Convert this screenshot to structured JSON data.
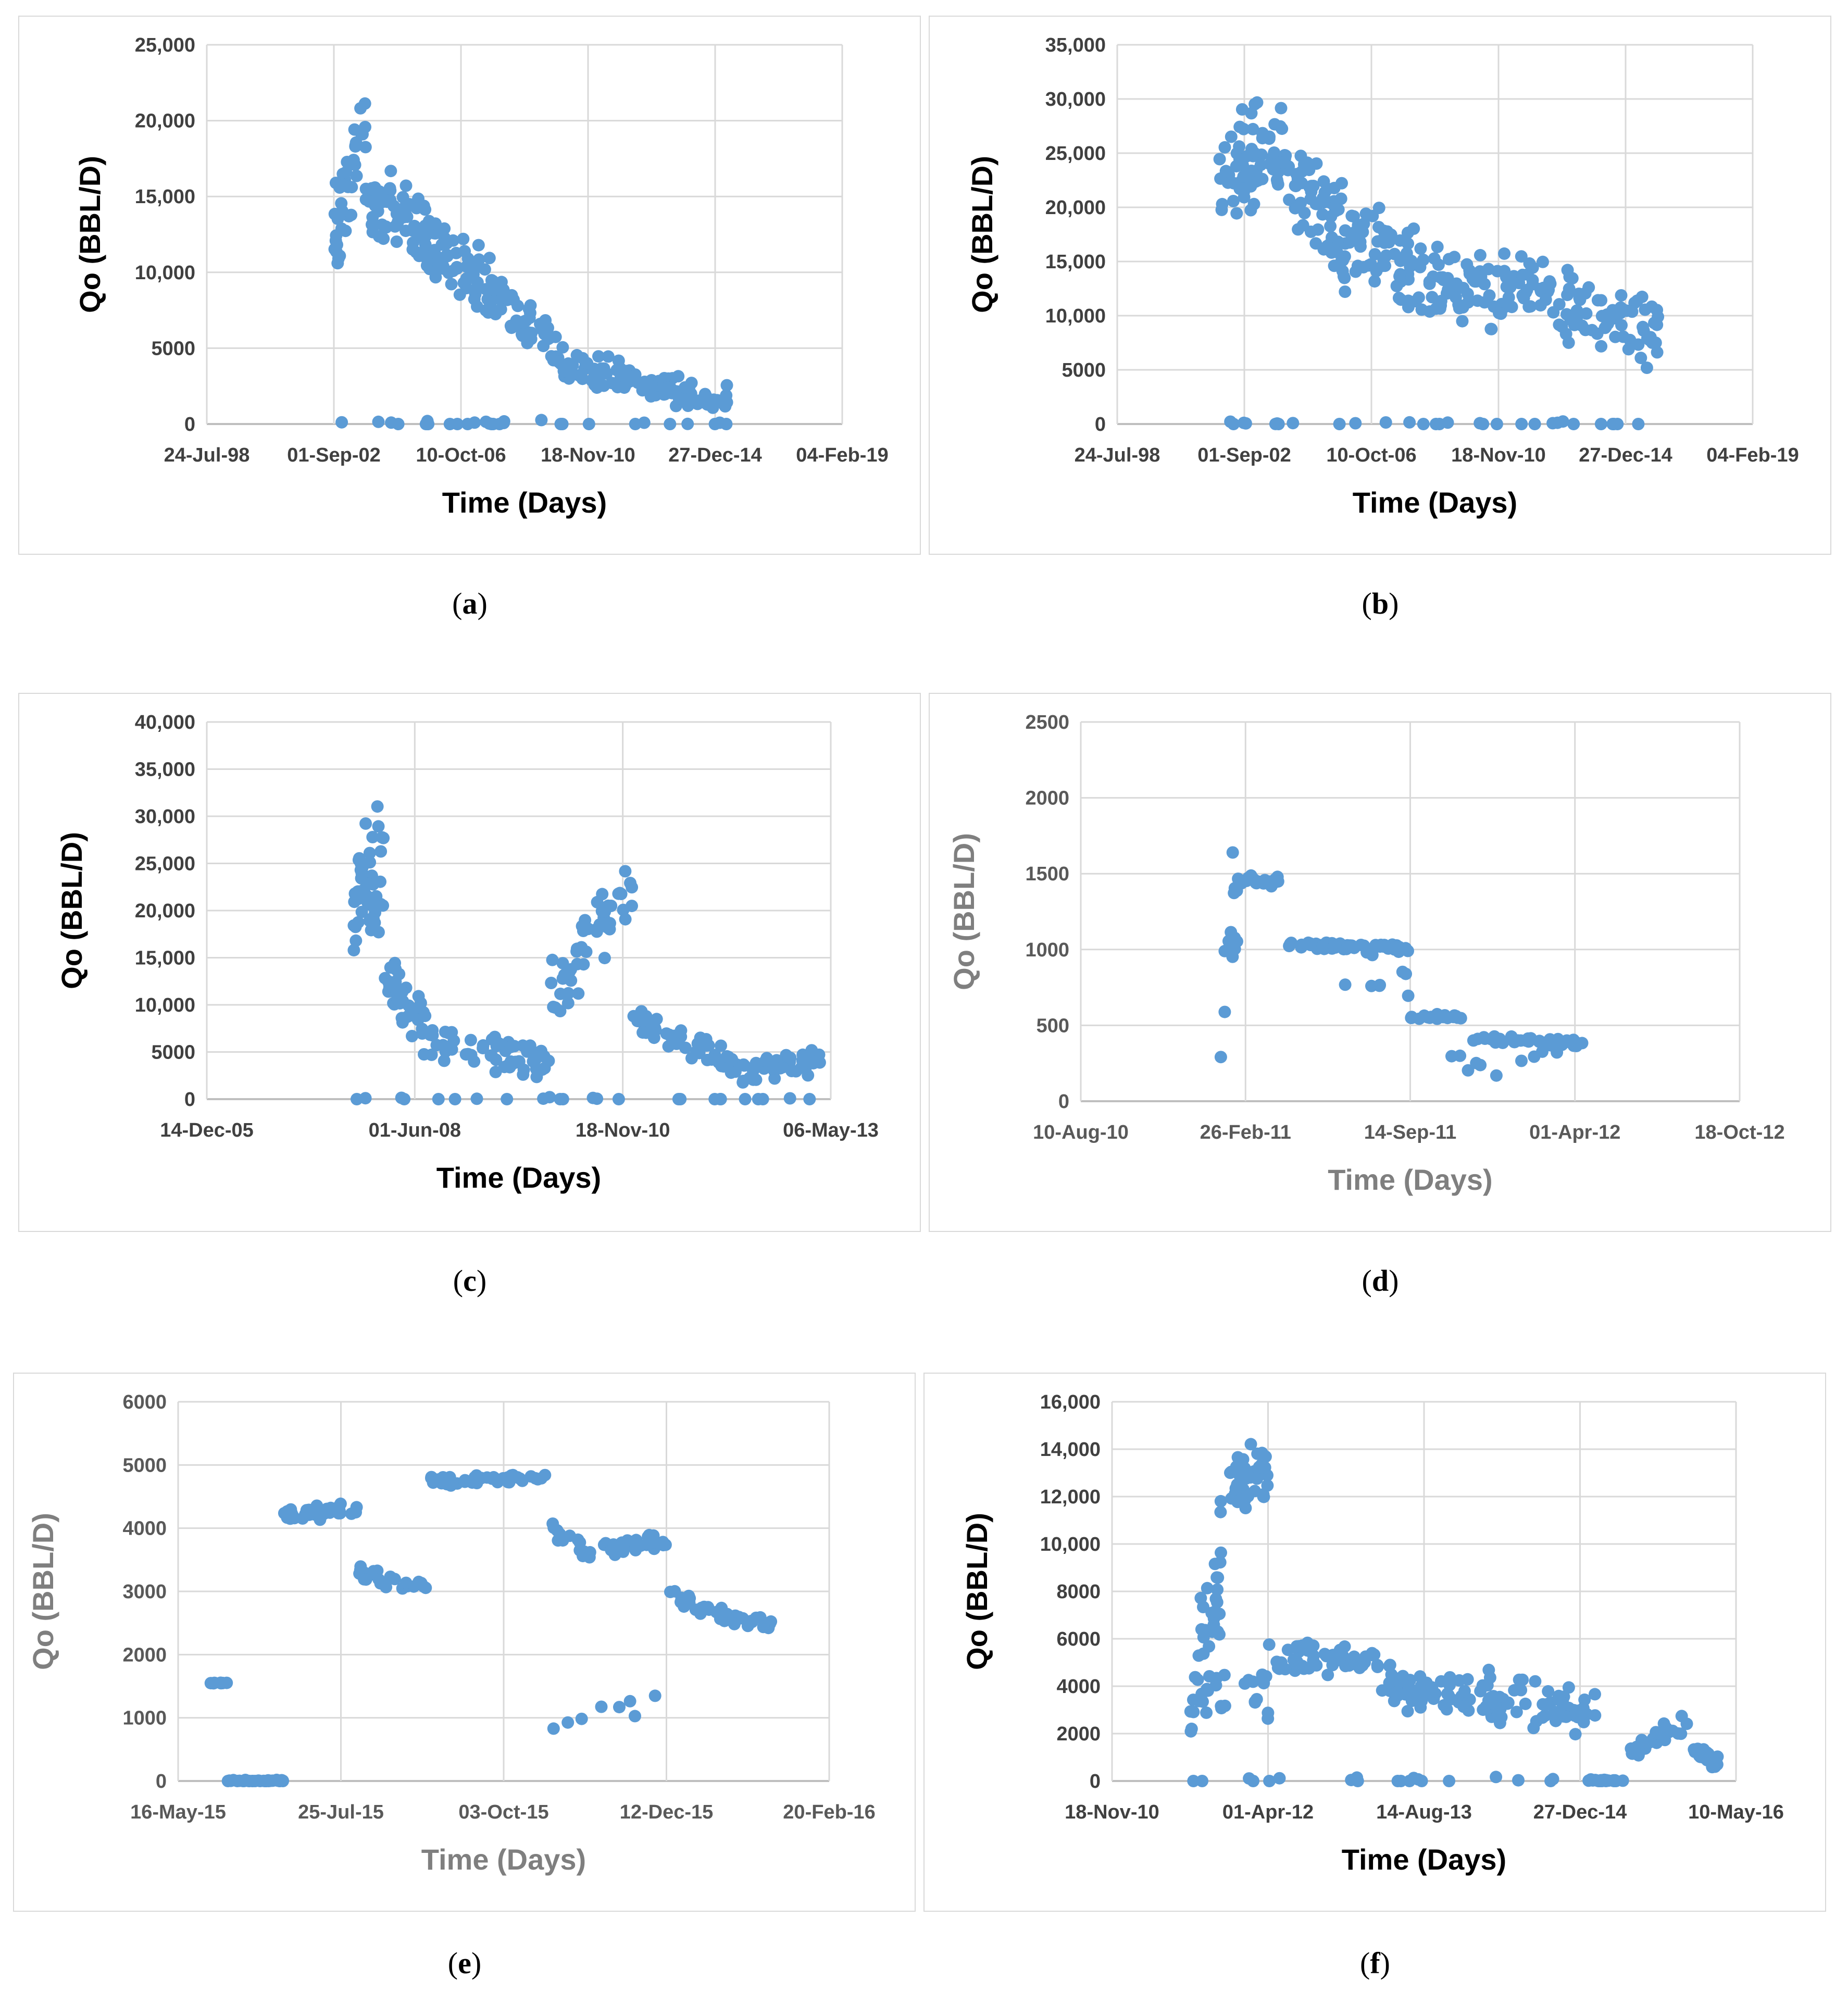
{
  "colors": {
    "marker": "#5b9bd5",
    "grid": "#d9d9d9",
    "border": "#d9d9d9"
  },
  "chart_data": [
    {
      "id": "a",
      "caption": "a",
      "type": "scatter",
      "xlabel": "Time (Days)",
      "ylabel": "Qo (BBL/D)",
      "yticks": [
        "0",
        "5000",
        "10,000",
        "15,000",
        "20,000",
        "25,000"
      ],
      "ylim": [
        0,
        25000
      ],
      "xticks": [
        "24-Jul-98",
        "01-Sep-02",
        "10-Oct-06",
        "18-Nov-10",
        "27-Dec-14",
        "04-Feb-19"
      ],
      "xlim": [
        0,
        5
      ],
      "light_labels": false,
      "series": [
        {
          "name": "Qo",
          "segments": [
            {
              "x0": 1.0,
              "x1": 1.25,
              "y0": 12000,
              "y1": 20500,
              "n": 40,
              "spread": 3500
            },
            {
              "x0": 1.25,
              "x1": 1.75,
              "y0": 15000,
              "y1": 12500,
              "n": 60,
              "spread": 2800
            },
            {
              "x0": 1.75,
              "x1": 2.25,
              "y0": 12000,
              "y1": 9000,
              "n": 60,
              "spread": 2500
            },
            {
              "x0": 2.25,
              "x1": 2.75,
              "y0": 8500,
              "y1": 5000,
              "n": 50,
              "spread": 1800
            },
            {
              "x0": 2.75,
              "x1": 3.5,
              "y0": 4200,
              "y1": 2600,
              "n": 60,
              "spread": 1300
            },
            {
              "x0": 3.5,
              "x1": 4.1,
              "y0": 2500,
              "y1": 1500,
              "n": 50,
              "spread": 1100
            },
            {
              "x0": 1.0,
              "x1": 4.1,
              "y0": 0,
              "y1": 0,
              "n": 30,
              "spread": 300
            }
          ]
        }
      ]
    },
    {
      "id": "b",
      "caption": "b",
      "type": "scatter",
      "xlabel": "Time (Days)",
      "ylabel": "Qo (BBL/D)",
      "yticks": [
        "0",
        "5000",
        "10,000",
        "15,000",
        "20,000",
        "25,000",
        "30,000",
        "35,000"
      ],
      "ylim": [
        0,
        35000
      ],
      "xticks": [
        "24-Jul-98",
        "01-Sep-02",
        "10-Oct-06",
        "18-Nov-10",
        "27-Dec-14",
        "04-Feb-19"
      ],
      "xlim": [
        0,
        5
      ],
      "light_labels": false,
      "series": [
        {
          "name": "Qo",
          "segments": [
            {
              "x0": 0.8,
              "x1": 1.3,
              "y0": 22000,
              "y1": 26000,
              "n": 70,
              "spread": 6000
            },
            {
              "x0": 1.3,
              "x1": 1.8,
              "y0": 24000,
              "y1": 17000,
              "n": 70,
              "spread": 5500
            },
            {
              "x0": 1.8,
              "x1": 2.5,
              "y0": 17000,
              "y1": 13000,
              "n": 70,
              "spread": 5000
            },
            {
              "x0": 2.5,
              "x1": 3.3,
              "y0": 13000,
              "y1": 12000,
              "n": 70,
              "spread": 4500
            },
            {
              "x0": 3.3,
              "x1": 4.3,
              "y0": 12000,
              "y1": 8000,
              "n": 80,
              "spread": 4000
            },
            {
              "x0": 0.8,
              "x1": 4.3,
              "y0": 0,
              "y1": 0,
              "n": 30,
              "spread": 300
            }
          ]
        }
      ]
    },
    {
      "id": "c",
      "caption": "c",
      "type": "scatter",
      "xlabel": "Time (Days)",
      "ylabel": "Qo (BBL/D)",
      "yticks": [
        "0",
        "5000",
        "10,000",
        "15,000",
        "20,000",
        "25,000",
        "30,000",
        "35,000",
        "40,000"
      ],
      "ylim": [
        0,
        40000
      ],
      "xticks": [
        "14-Dec-05",
        "01-Jun-08",
        "18-Nov-10",
        "06-May-13"
      ],
      "xlim": [
        0,
        3
      ],
      "light_labels": false,
      "series": [
        {
          "name": "Qo",
          "segments": [
            {
              "x0": 0.7,
              "x1": 0.85,
              "y0": 20000,
              "y1": 25000,
              "n": 50,
              "spread": 9000
            },
            {
              "x0": 0.85,
              "x1": 1.05,
              "y0": 14000,
              "y1": 8000,
              "n": 40,
              "spread": 4000
            },
            {
              "x0": 1.05,
              "x1": 1.65,
              "y0": 6000,
              "y1": 3500,
              "n": 60,
              "spread": 2200
            },
            {
              "x0": 1.65,
              "x1": 2.05,
              "y0": 11000,
              "y1": 23000,
              "n": 50,
              "spread": 4500
            },
            {
              "x0": 2.05,
              "x1": 2.55,
              "y0": 8500,
              "y1": 3500,
              "n": 50,
              "spread": 2200
            },
            {
              "x0": 2.55,
              "x1": 2.95,
              "y0": 3000,
              "y1": 4000,
              "n": 40,
              "spread": 1600
            },
            {
              "x0": 0.7,
              "x1": 2.95,
              "y0": 0,
              "y1": 0,
              "n": 25,
              "spread": 300
            }
          ]
        }
      ]
    },
    {
      "id": "d",
      "caption": "d",
      "type": "scatter",
      "xlabel": "Time (Days)",
      "ylabel": "Qo (BBL/D)",
      "yticks": [
        "0",
        "500",
        "1000",
        "1500",
        "2000",
        "2500"
      ],
      "ylim": [
        0,
        2500
      ],
      "xticks": [
        "10-Aug-10",
        "26-Feb-11",
        "14-Sep-11",
        "01-Apr-12",
        "18-Oct-12"
      ],
      "xlim": [
        0,
        4
      ],
      "light_labels": true,
      "series": [
        {
          "name": "Qo",
          "segments": [
            {
              "x0": 0.85,
              "x1": 0.95,
              "y0": 700,
              "y1": 1450,
              "n": 14,
              "spread": 500
            },
            {
              "x0": 0.95,
              "x1": 1.2,
              "y0": 1450,
              "y1": 1450,
              "n": 24,
              "spread": 40
            },
            {
              "x0": 1.2,
              "x1": 2.0,
              "y0": 1030,
              "y1": 1010,
              "n": 50,
              "spread": 30
            },
            {
              "x0": 1.6,
              "x1": 2.0,
              "y0": 850,
              "y1": 800,
              "n": 10,
              "spread": 250
            },
            {
              "x0": 2.0,
              "x1": 2.35,
              "y0": 555,
              "y1": 555,
              "n": 22,
              "spread": 25
            },
            {
              "x0": 2.35,
              "x1": 3.05,
              "y0": 420,
              "y1": 380,
              "n": 45,
              "spread": 30
            },
            {
              "x0": 2.2,
              "x1": 2.9,
              "y0": 300,
              "y1": 300,
              "n": 10,
              "spread": 150
            }
          ]
        }
      ]
    },
    {
      "id": "e",
      "caption": "e",
      "type": "scatter",
      "xlabel": "Time (Days)",
      "ylabel": "Qo (BBL/D)",
      "yticks": [
        "0",
        "1000",
        "2000",
        "3000",
        "4000",
        "5000",
        "6000"
      ],
      "ylim": [
        0,
        6000
      ],
      "xticks": [
        "16-May-15",
        "25-Jul-15",
        "03-Oct-15",
        "12-Dec-15",
        "20-Feb-16"
      ],
      "xlim": [
        0,
        4
      ],
      "light_labels": true,
      "series": [
        {
          "name": "Qo",
          "segments": [
            {
              "x0": 0.2,
              "x1": 0.3,
              "y0": 1550,
              "y1": 1550,
              "n": 8,
              "spread": 10
            },
            {
              "x0": 0.3,
              "x1": 0.65,
              "y0": 0,
              "y1": 0,
              "n": 35,
              "spread": 20
            },
            {
              "x0": 0.65,
              "x1": 1.1,
              "y0": 4200,
              "y1": 4300,
              "n": 35,
              "spread": 150
            },
            {
              "x0": 1.1,
              "x1": 1.55,
              "y0": 3300,
              "y1": 3050,
              "n": 25,
              "spread": 150
            },
            {
              "x0": 1.55,
              "x1": 2.3,
              "y0": 4750,
              "y1": 4800,
              "n": 40,
              "spread": 100
            },
            {
              "x0": 2.3,
              "x1": 2.6,
              "y0": 4000,
              "y1": 3500,
              "n": 15,
              "spread": 200
            },
            {
              "x0": 2.6,
              "x1": 3.0,
              "y0": 3700,
              "y1": 3800,
              "n": 30,
              "spread": 150
            },
            {
              "x0": 3.0,
              "x1": 3.35,
              "y0": 2950,
              "y1": 2600,
              "n": 20,
              "spread": 150
            },
            {
              "x0": 3.35,
              "x1": 3.65,
              "y0": 2600,
              "y1": 2500,
              "n": 20,
              "spread": 120
            },
            {
              "x0": 2.3,
              "x1": 3.0,
              "y0": 1000,
              "y1": 1200,
              "n": 8,
              "spread": 400
            }
          ]
        }
      ]
    },
    {
      "id": "f",
      "caption": "f",
      "type": "scatter",
      "xlabel": "Time (Days)",
      "ylabel": "Qo (BBL/D)",
      "yticks": [
        "0",
        "2000",
        "4000",
        "6000",
        "8000",
        "10,000",
        "12,000",
        "14,000",
        "16,000"
      ],
      "ylim": [
        0,
        16000
      ],
      "xticks": [
        "18-Nov-10",
        "01-Apr-12",
        "14-Aug-13",
        "27-Dec-14",
        "10-May-16"
      ],
      "xlim": [
        0,
        4
      ],
      "light_labels": false,
      "series": [
        {
          "name": "Qo",
          "segments": [
            {
              "x0": 0.5,
              "x1": 0.7,
              "y0": 3500,
              "y1": 9000,
              "n": 35,
              "spread": 4000
            },
            {
              "x0": 0.75,
              "x1": 1.0,
              "y0": 12500,
              "y1": 13000,
              "n": 40,
              "spread": 1500
            },
            {
              "x0": 0.5,
              "x1": 1.0,
              "y0": 3500,
              "y1": 3500,
              "n": 25,
              "spread": 1200
            },
            {
              "x0": 1.0,
              "x1": 1.7,
              "y0": 5000,
              "y1": 5200,
              "n": 50,
              "spread": 900
            },
            {
              "x0": 1.7,
              "x1": 2.4,
              "y0": 4000,
              "y1": 3600,
              "n": 60,
              "spread": 1000
            },
            {
              "x0": 2.4,
              "x1": 3.1,
              "y0": 3500,
              "y1": 3000,
              "n": 60,
              "spread": 1300
            },
            {
              "x0": 3.05,
              "x1": 3.3,
              "y0": 0,
              "y1": 0,
              "n": 20,
              "spread": 100
            },
            {
              "x0": 3.3,
              "x1": 3.7,
              "y0": 1200,
              "y1": 2500,
              "n": 30,
              "spread": 500
            },
            {
              "x0": 3.7,
              "x1": 3.9,
              "y0": 1500,
              "y1": 700,
              "n": 20,
              "spread": 500
            },
            {
              "x0": 0.5,
              "x1": 3.0,
              "y0": 0,
              "y1": 0,
              "n": 20,
              "spread": 200
            }
          ]
        }
      ]
    }
  ]
}
